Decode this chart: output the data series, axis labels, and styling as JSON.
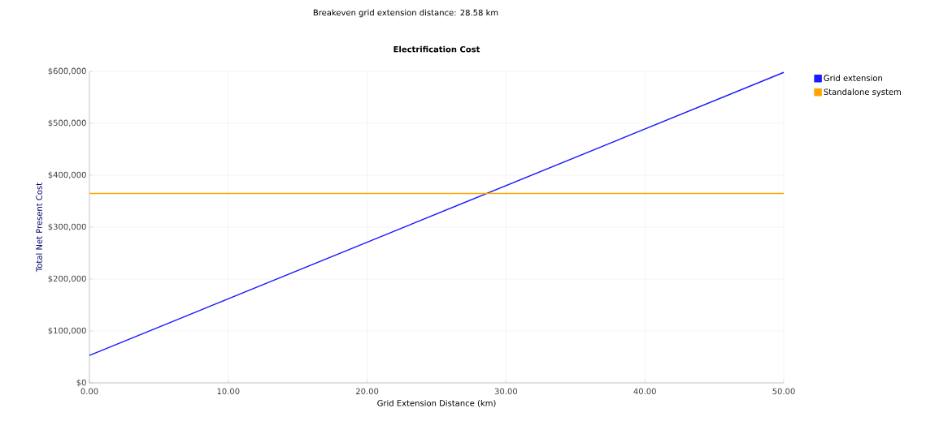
{
  "chart_data": {
    "type": "line",
    "title": "Electrification Cost",
    "annotations": [
      "Breakeven grid extension distance: 28.58 km"
    ],
    "xlabel": "Grid Extension Distance (km)",
    "ylabel": "Total Net Present Cost",
    "x": [
      0,
      50
    ],
    "series": [
      {
        "name": "Grid extension",
        "color": "#1a1aff",
        "values": [
          53000,
          598000
        ]
      },
      {
        "name": "Standalone system",
        "color": "#ffa500",
        "values": [
          365000,
          365000
        ]
      }
    ],
    "xlim": [
      0,
      50
    ],
    "ylim": [
      0,
      600000
    ],
    "xticks": [
      {
        "value": 0,
        "label": "0.00"
      },
      {
        "value": 10,
        "label": "10.00"
      },
      {
        "value": 20,
        "label": "20.00"
      },
      {
        "value": 30,
        "label": "30.00"
      },
      {
        "value": 40,
        "label": "40.00"
      },
      {
        "value": 50,
        "label": "50.00"
      }
    ],
    "yticks": [
      {
        "value": 0,
        "label": "$0"
      },
      {
        "value": 100000,
        "label": "$100,000"
      },
      {
        "value": 200000,
        "label": "$200,000"
      },
      {
        "value": 300000,
        "label": "$300,000"
      },
      {
        "value": 400000,
        "label": "$400,000"
      },
      {
        "value": 500000,
        "label": "$500,000"
      },
      {
        "value": 600000,
        "label": "$600,000"
      }
    ],
    "grid": true,
    "legend": "right",
    "marker": "none",
    "line_style": "solid"
  }
}
